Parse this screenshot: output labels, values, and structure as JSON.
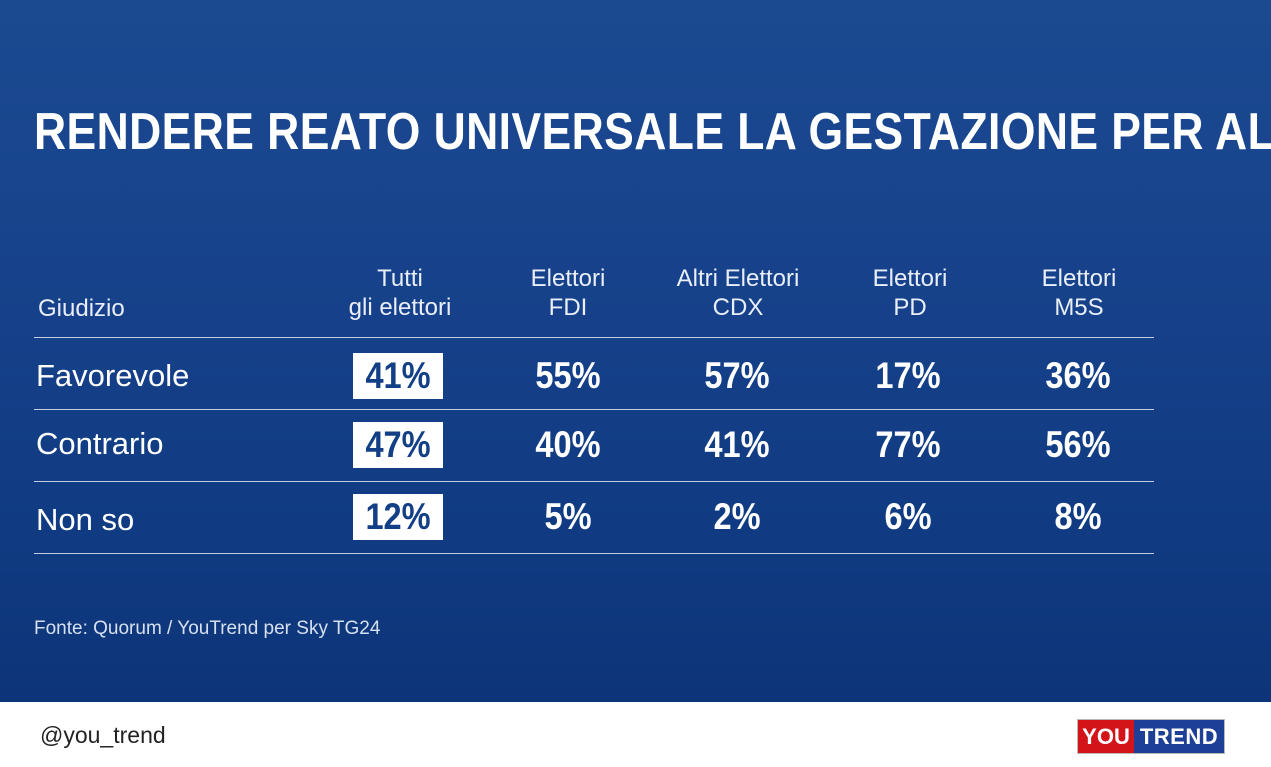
{
  "title": "RENDERE REATO UNIVERSALE LA GESTAZIONE PER ALTRI",
  "source": "Fonte: Quorum / YouTrend per Sky TG24",
  "footer": {
    "handle": "@you_trend",
    "logo_you": "YOU",
    "logo_trend": "TREND"
  },
  "colors": {
    "background": "#16418a",
    "highlight_box": "#ffffff",
    "logo_red": "#d3151a",
    "logo_blue": "#1d3f95"
  },
  "chart_data": {
    "type": "table",
    "title": "RENDERE REATO UNIVERSALE LA GESTAZIONE PER ALTRI",
    "row_header": "Giudizio",
    "columns": [
      {
        "line1": "Tutti",
        "line2": "gli elettori"
      },
      {
        "line1": "Elettori",
        "line2": "FDI"
      },
      {
        "line1": "Altri Elettori",
        "line2": "CDX"
      },
      {
        "line1": "Elettori",
        "line2": "PD"
      },
      {
        "line1": "Elettori",
        "line2": "M5S"
      }
    ],
    "rows": [
      {
        "label": "Favorevole",
        "values": [
          "41%",
          "55%",
          "57%",
          "17%",
          "36%"
        ]
      },
      {
        "label": "Contrario",
        "values": [
          "47%",
          "40%",
          "41%",
          "77%",
          "56%"
        ]
      },
      {
        "label": "Non so",
        "values": [
          "12%",
          "5%",
          "2%",
          "6%",
          "8%"
        ]
      }
    ]
  }
}
